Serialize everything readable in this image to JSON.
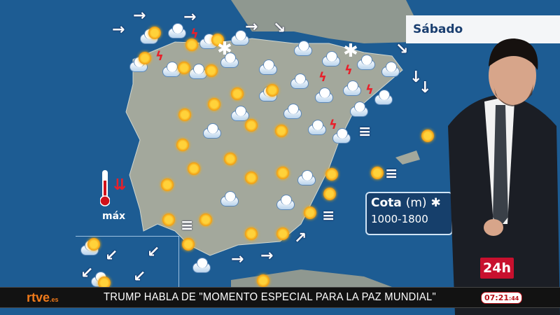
{
  "day_label": "Sábado",
  "snow_level": {
    "title": "Cota",
    "unit": "(m)",
    "range": "1000-1800",
    "icon": "snowflake-icon"
  },
  "temperature": {
    "label": "máx",
    "trend": "falling",
    "icon": "thermometer-down-icon"
  },
  "ticker": {
    "brand": "rtve",
    "brand_suffix": ".es",
    "headline": "TRUMP HABLA DE \"MOMENTO ESPECIAL PARA LA PAZ MUNDIAL\"",
    "time": "07:21",
    "seconds": ":44"
  },
  "channel_logo": "24h",
  "colors": {
    "sea": "#1d5c93",
    "land": "#9aa096",
    "accent": "#c8102e",
    "brand": "#f07a1a"
  },
  "icon_types": [
    "sun-icon",
    "cloud-sun-icon",
    "cloud-icon",
    "rain-icon",
    "storm-icon",
    "snow-icon",
    "wind-arrow-icon",
    "fog-icon"
  ]
}
